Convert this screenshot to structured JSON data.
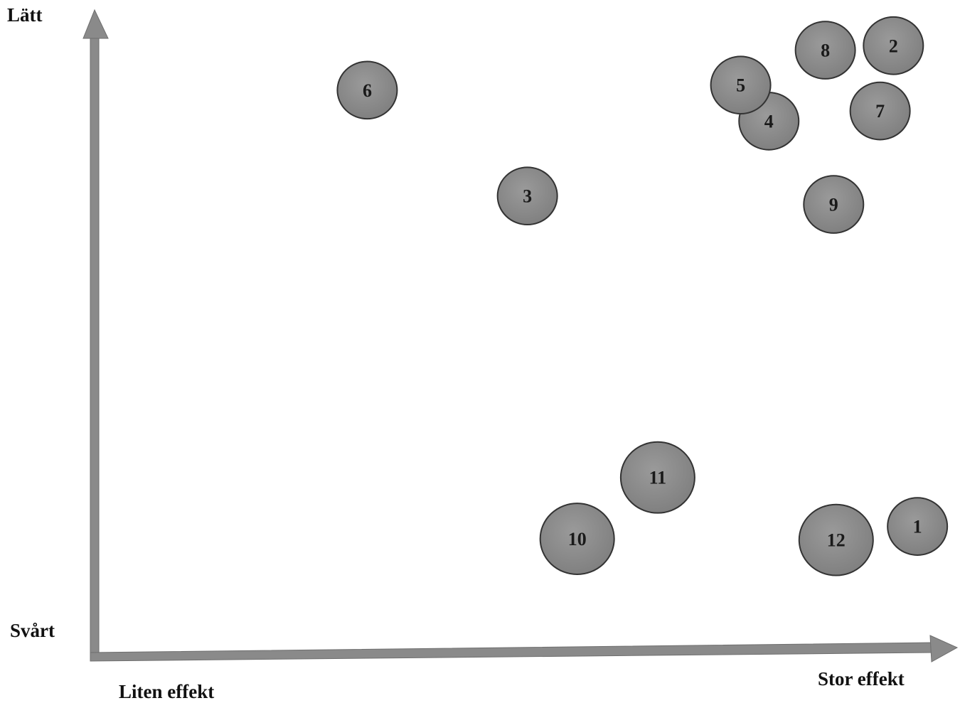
{
  "chart_data": {
    "type": "scatter",
    "labels": {
      "y_top": "Lätt",
      "y_bottom": "Svårt",
      "x_left": "Liten effekt",
      "x_right": "Stor effekt"
    },
    "xlim": [
      0,
      100
    ],
    "ylim": [
      0,
      100
    ],
    "points": [
      {
        "label": "1",
        "x": 97.7,
        "y": 12.8,
        "r": 42
      },
      {
        "label": "2",
        "x": 94.8,
        "y": 98.2,
        "r": 42
      },
      {
        "label": "3",
        "x": 50.7,
        "y": 71.5,
        "r": 42
      },
      {
        "label": "4",
        "x": 79.8,
        "y": 84.8,
        "r": 42
      },
      {
        "label": "5",
        "x": 76.4,
        "y": 91.2,
        "r": 42
      },
      {
        "label": "6",
        "x": 31.4,
        "y": 90.3,
        "r": 42
      },
      {
        "label": "7",
        "x": 93.2,
        "y": 86.6,
        "r": 42
      },
      {
        "label": "8",
        "x": 86.6,
        "y": 97.4,
        "r": 42
      },
      {
        "label": "9",
        "x": 87.6,
        "y": 70.0,
        "r": 42
      },
      {
        "label": "10",
        "x": 56.7,
        "y": 10.6,
        "r": 52
      },
      {
        "label": "11",
        "x": 66.4,
        "y": 21.5,
        "r": 52
      },
      {
        "label": "12",
        "x": 87.9,
        "y": 10.4,
        "r": 52
      }
    ],
    "colors": {
      "point_fill": "#8c8c8c",
      "point_stroke": "#333333",
      "axis": "#8a8a8a",
      "axis_edge": "#6e6e6e"
    }
  }
}
